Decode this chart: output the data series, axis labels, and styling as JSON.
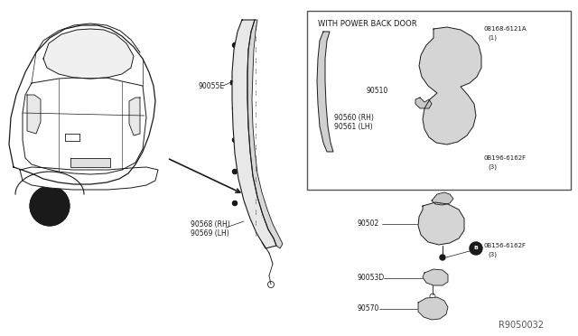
{
  "background_color": "#ffffff",
  "line_color": "#1a1a1a",
  "fig_width": 6.4,
  "fig_height": 3.72,
  "diagram_id": "R9050032",
  "box_title": "WITH POWER BACK DOOR",
  "label_90055E": "90055E",
  "label_90568": "90568 (RH)",
  "label_90569": "90569 (LH)",
  "label_90510": "90510",
  "label_90560": "90560 (RH)",
  "label_90561": "90561 (LH)",
  "label_08168": "08168-6121A",
  "label_1_top": "(1)",
  "label_08196": "0B196-6162F",
  "label_3_top": "(3)",
  "label_90502": "90502",
  "label_08156": "0B156-6162F",
  "label_3_bot": "(3)",
  "label_90053D": "90053D",
  "label_90570": "90570"
}
